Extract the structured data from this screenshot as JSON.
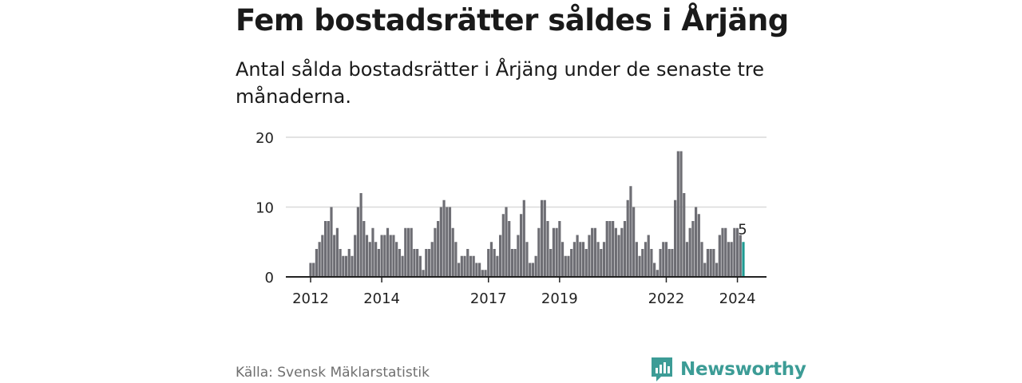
{
  "title": "Fem bostadsrätter såldes i Årjäng",
  "subtitle": "Antal sålda bostadsrätter i Årjäng under de senaste tre månaderna.",
  "source": "Källa: Svensk Mäklarstatistik",
  "brand": {
    "name": "Newsworthy",
    "logo_icon": "newsworthy-bar-chart-icon"
  },
  "colors": {
    "bar": "#6e6e74",
    "highlight": "#1f9a92",
    "grid": "#d9d9d9",
    "axis": "#222222",
    "brand": "#3c9c96"
  },
  "chart_data": {
    "type": "bar",
    "ylim": [
      0,
      20
    ],
    "yticks": [
      0,
      10,
      20
    ],
    "xtick_labels": [
      "2012",
      "2014",
      "2017",
      "2019",
      "2022",
      "2024"
    ],
    "xtick_indices": [
      0,
      24,
      60,
      84,
      120,
      144
    ],
    "highlight_label": "5",
    "values": [
      2,
      2,
      4,
      5,
      6,
      8,
      8,
      10,
      6,
      7,
      4,
      3,
      3,
      4,
      3,
      6,
      10,
      12,
      8,
      6,
      5,
      7,
      5,
      4,
      6,
      6,
      7,
      6,
      6,
      5,
      4,
      3,
      7,
      7,
      7,
      4,
      4,
      3,
      1,
      4,
      4,
      5,
      7,
      8,
      10,
      11,
      10,
      10,
      7,
      5,
      2,
      3,
      3,
      4,
      3,
      3,
      2,
      2,
      1,
      1,
      4,
      5,
      4,
      3,
      6,
      9,
      10,
      8,
      4,
      4,
      6,
      9,
      11,
      5,
      2,
      2,
      3,
      7,
      11,
      11,
      8,
      4,
      7,
      7,
      8,
      5,
      3,
      3,
      4,
      5,
      6,
      5,
      5,
      4,
      6,
      7,
      7,
      5,
      4,
      5,
      8,
      8,
      8,
      7,
      6,
      7,
      8,
      11,
      13,
      10,
      5,
      3,
      4,
      5,
      6,
      4,
      2,
      1,
      4,
      5,
      5,
      4,
      4,
      11,
      18,
      18,
      12,
      5,
      7,
      8,
      10,
      9,
      5,
      2,
      4,
      4,
      4,
      2,
      6,
      7,
      7,
      5,
      5,
      7,
      7,
      6,
      5
    ]
  }
}
